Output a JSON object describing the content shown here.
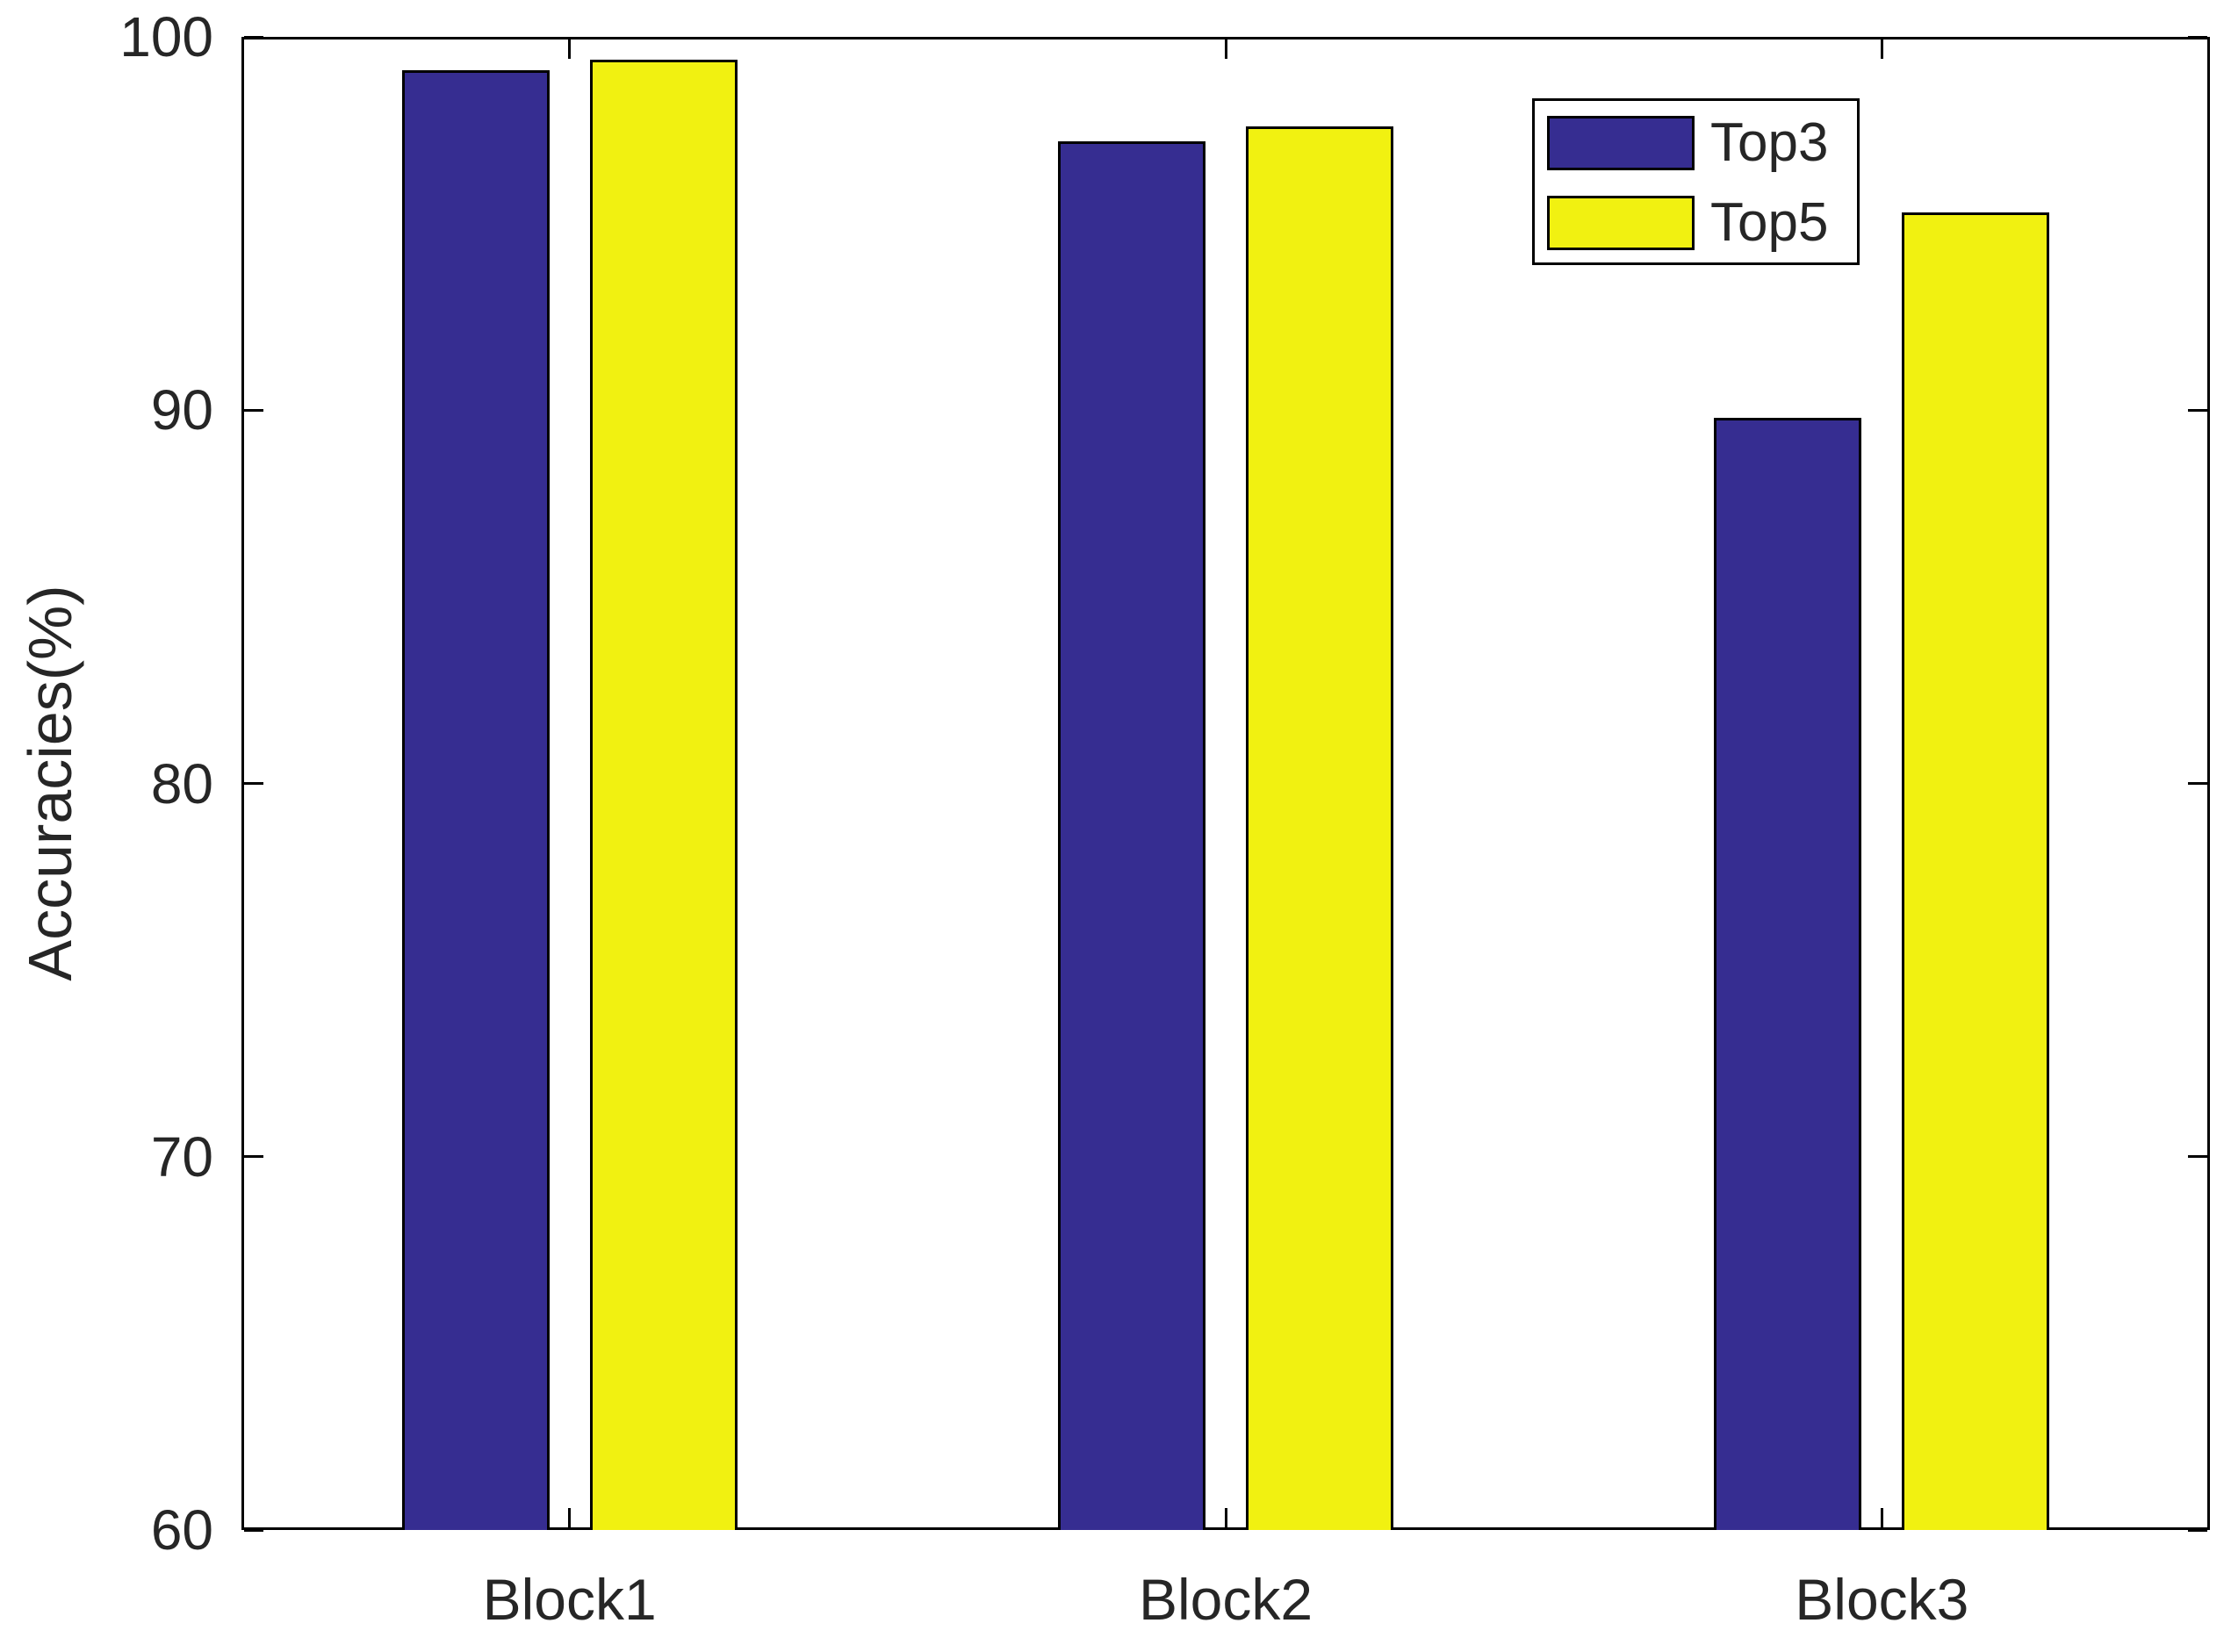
{
  "chart_data": {
    "type": "bar",
    "title": "",
    "categories": [
      "Block1",
      "Block2",
      "Block3"
    ],
    "series": [
      {
        "name": "Top3",
        "color": "#362D91",
        "values": [
          99.1,
          97.2,
          89.8
        ]
      },
      {
        "name": "Top5",
        "color": "#F1F111",
        "values": [
          99.4,
          97.6,
          95.3
        ]
      }
    ],
    "xlabel": "",
    "ylabel": "Accuracies(%)",
    "ylim": [
      60,
      100
    ],
    "yticks": [
      60,
      70,
      80,
      90,
      100
    ],
    "grid": false,
    "legend_position": "top-right",
    "bar_edge_color": "#000000",
    "axis_color": "#000000",
    "tick_label_color": "#262626"
  }
}
